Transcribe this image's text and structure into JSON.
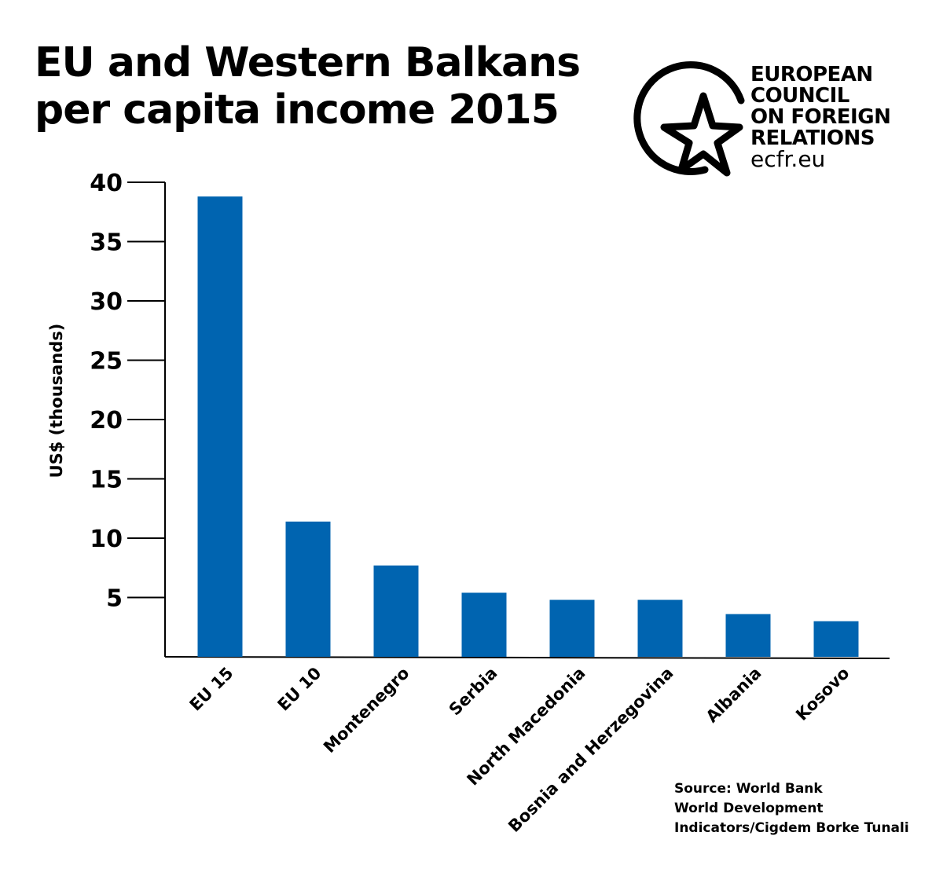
{
  "title_lines": [
    "EU and Western Balkans",
    "per capita income 2015"
  ],
  "logo": {
    "lines": [
      "EUROPEAN",
      "COUNCIL",
      "ON FOREIGN",
      "RELATIONS"
    ],
    "url": "ecfr.eu",
    "icon": "circle-star-icon"
  },
  "source_lines": [
    "Source: World Bank",
    "World Development",
    "Indicators/Cigdem Borke Tunali"
  ],
  "colors": {
    "bar": "#0064b0",
    "axis": "#000000"
  },
  "chart_data": {
    "type": "bar",
    "title": "EU and Western Balkans per capita income 2015",
    "ylabel": "US$ (thousands)",
    "xlabel": "",
    "categories": [
      "EU 15",
      "EU 10",
      "Montenegro",
      "Serbia",
      "North Macedonia",
      "Bosnia and Herzegovina",
      "Albania",
      "Kosovo"
    ],
    "values": [
      38.8,
      11.4,
      7.7,
      5.4,
      4.8,
      4.8,
      3.6,
      3.0
    ],
    "ylim": [
      0,
      40
    ],
    "yticks": [
      5,
      10,
      15,
      20,
      25,
      30,
      35,
      40
    ],
    "grid": false,
    "legend": "none"
  }
}
